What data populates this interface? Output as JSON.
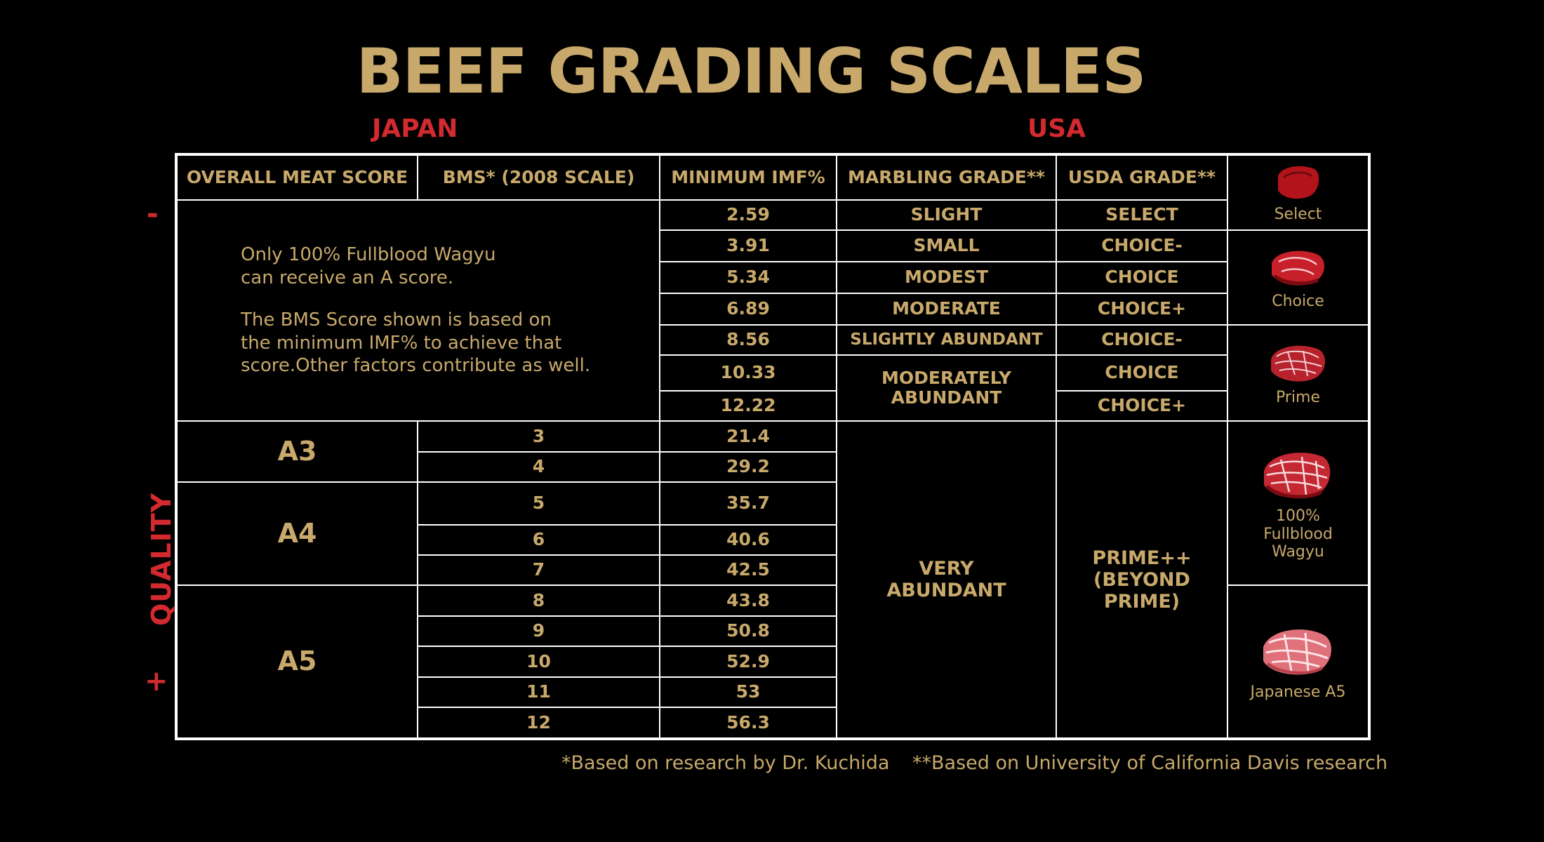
{
  "title": "BEEF GRADING SCALES",
  "regions": {
    "japan": "JAPAN",
    "usa": "USA"
  },
  "side": {
    "minus": "-",
    "quality": "QUALITY",
    "plus": "+"
  },
  "headers": {
    "overall": "OVERALL MEAT SCORE",
    "bms": "BMS* (2008 SCALE)",
    "imf": "MINIMUM IMF%",
    "marbling": "MARBLING GRADE**",
    "usda": "USDA GRADE**"
  },
  "note": {
    "p1": "Only 100% Fullblood Wagyu\ncan receive an A score.",
    "p2": "The BMS Score shown is based on\nthe minimum IMF% to achieve that\nscore.Other factors contribute as well."
  },
  "usa_rows": [
    {
      "imf": "2.59",
      "marbling": "SLIGHT",
      "usda": "SELECT"
    },
    {
      "imf": "3.91",
      "marbling": "SMALL",
      "usda": "CHOICE-"
    },
    {
      "imf": "5.34",
      "marbling": "MODEST",
      "usda": "CHOICE"
    },
    {
      "imf": "6.89",
      "marbling": "MODERATE",
      "usda": "CHOICE+"
    },
    {
      "imf": "8.56",
      "marbling": "SLIGHTLY ABUNDANT",
      "usda": "CHOICE-"
    },
    {
      "imf": "10.33",
      "marbling": "MODERATELY ABUNDANT",
      "usda": "CHOICE"
    },
    {
      "imf": "12.22",
      "marbling": "",
      "usda": "CHOICE+"
    }
  ],
  "japan_rows": [
    {
      "grade": "A3",
      "bms": "3",
      "imf": "21.4"
    },
    {
      "grade": "",
      "bms": "4",
      "imf": "29.2"
    },
    {
      "grade": "A4",
      "bms": "5",
      "imf": "35.7"
    },
    {
      "grade": "",
      "bms": "6",
      "imf": "40.6"
    },
    {
      "grade": "",
      "bms": "7",
      "imf": "42.5"
    },
    {
      "grade": "A5",
      "bms": "8",
      "imf": "43.8"
    },
    {
      "grade": "",
      "bms": "9",
      "imf": "50.8"
    },
    {
      "grade": "",
      "bms": "10",
      "imf": "52.9"
    },
    {
      "grade": "",
      "bms": "11",
      "imf": "53"
    },
    {
      "grade": "",
      "bms": "12",
      "imf": "56.3"
    }
  ],
  "very_abundant": "VERY ABUNDANT",
  "prime_beyond": "PRIME++ (BEYOND PRIME)",
  "meats": [
    {
      "label": "Select",
      "icon": "steak-select-icon",
      "color": "#b3141c"
    },
    {
      "label": "Choice",
      "icon": "steak-choice-icon",
      "color": "#c8202a"
    },
    {
      "label": "Prime",
      "icon": "steak-prime-icon",
      "color": "#b8222c"
    },
    {
      "label": "100% Fullblood Wagyu",
      "icon": "steak-wagyu-icon",
      "color": "#c42832"
    },
    {
      "label": "Japanese A5",
      "icon": "steak-a5-icon",
      "color": "#e0707a"
    }
  ],
  "footer": {
    "f1": "*Based on research by Dr. Kuchida",
    "f2": "**Based on University of California Davis research"
  },
  "colors": {
    "gold": "#c8a96b",
    "red": "#d22a2e",
    "background": "#000000",
    "border": "#ffffff"
  }
}
